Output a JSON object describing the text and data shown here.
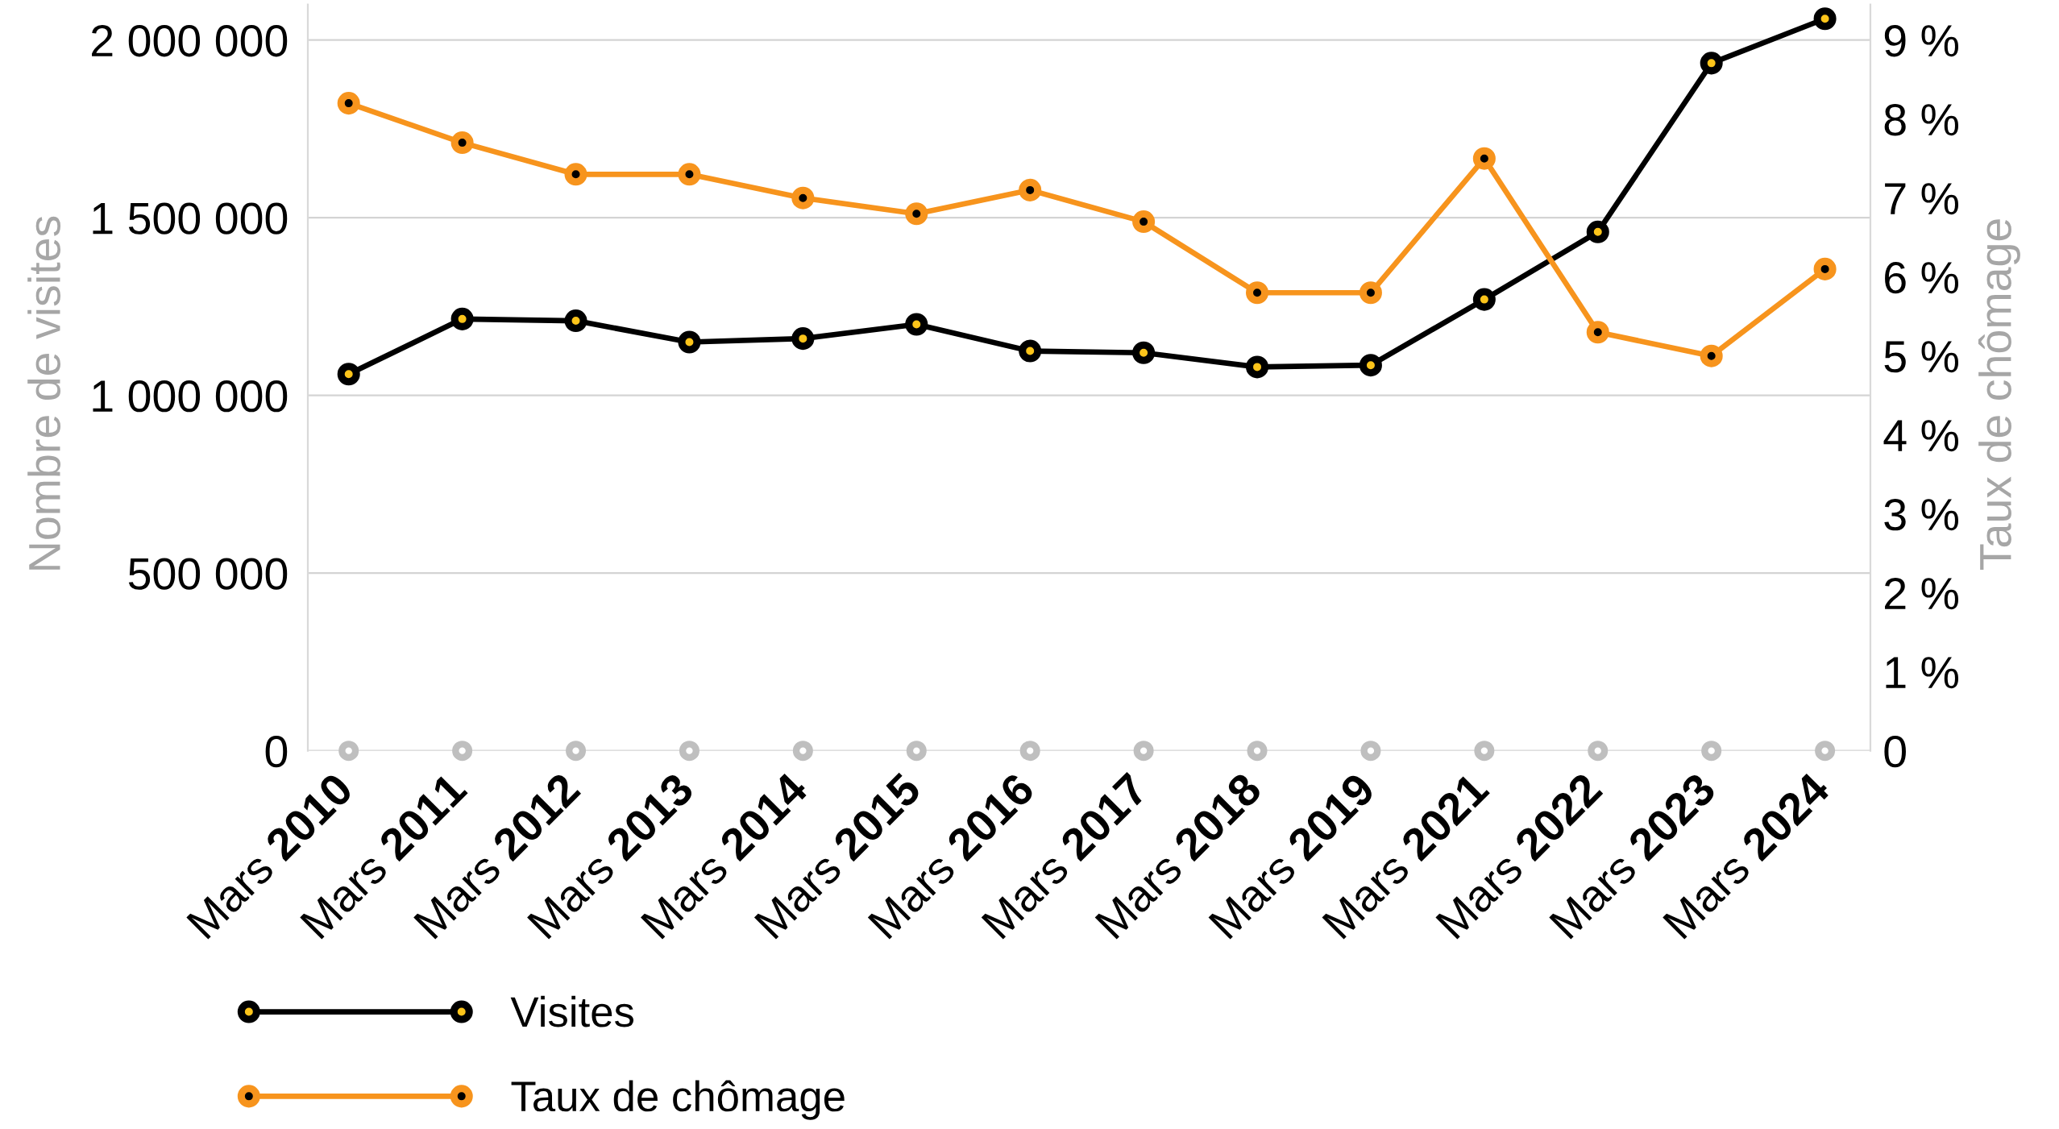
{
  "chart_data": {
    "type": "line",
    "categories": [
      "Mars 2010",
      "Mars 2011",
      "Mars 2012",
      "Mars 2013",
      "Mars 2014",
      "Mars 2015",
      "Mars 2016",
      "Mars 2017",
      "Mars 2018",
      "Mars 2019",
      "Mars 2021",
      "Mars 2022",
      "Mars 2023",
      "Mars 2024"
    ],
    "ylabel": "Nombre de visites",
    "y2label": "Taux de chômage",
    "series": [
      {
        "name": "Visites",
        "color": "#000000",
        "values": [
          1060000,
          1215000,
          1210000,
          1150000,
          1160000,
          1200000,
          1125000,
          1120000,
          1080000,
          1085000,
          1270000,
          1460000,
          1935000,
          2060000
        ]
      },
      {
        "name": "Taux de chômage",
        "color": "#f7941d",
        "axis": "y2",
        "values": [
          8.2,
          7.7,
          7.3,
          7.3,
          7.0,
          6.8,
          7.1,
          6.7,
          5.8,
          5.8,
          7.5,
          5.3,
          5.0,
          6.1
        ]
      },
      {
        "type": "scatter",
        "color": "#bfbfbf",
        "values": [
          0,
          0,
          0,
          0,
          0,
          0,
          0,
          0,
          0,
          0,
          0,
          0,
          0,
          0
        ]
      }
    ],
    "ylim": [
      0,
      2100000
    ],
    "yticks": [
      0,
      {
        "value": 500000,
        "label": "500 000"
      },
      {
        "value": 1000000,
        "label": "1 000 000"
      },
      {
        "value": 1500000,
        "label": "1 500 000"
      },
      {
        "value": 2000000,
        "label": "2 000 000"
      }
    ],
    "y2lim": [
      0,
      9.45
    ],
    "y2ticks": [
      0,
      {
        "value": 1,
        "label": "1 %"
      },
      {
        "value": 2,
        "label": "2 %"
      },
      {
        "value": 3,
        "label": "3 %"
      },
      {
        "value": 4,
        "label": "4 %"
      },
      {
        "value": 5,
        "label": "5 %"
      },
      {
        "value": 6,
        "label": "6 %"
      },
      {
        "value": 7,
        "label": "7 %"
      },
      {
        "value": 8,
        "label": "8 %"
      },
      {
        "value": 9,
        "label": "9 %"
      }
    ],
    "grid": "y",
    "legend": "bottom left",
    "marker": "circle",
    "line_style": "solid"
  }
}
